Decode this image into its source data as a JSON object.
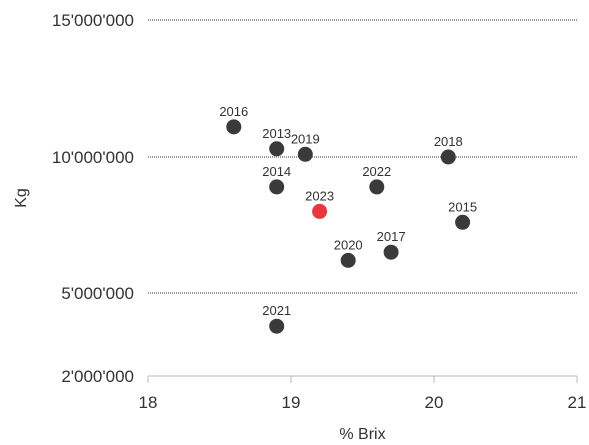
{
  "chart_data": {
    "type": "scatter",
    "title": "",
    "xlabel": "% Brix",
    "ylabel": "Kg",
    "xlim": [
      18,
      21
    ],
    "ylim": [
      2000000,
      15000000
    ],
    "x_ticks": [
      {
        "value": 18,
        "label": "18"
      },
      {
        "value": 19,
        "label": "19"
      },
      {
        "value": 20,
        "label": "20"
      },
      {
        "value": 21,
        "label": "21"
      }
    ],
    "y_ticks": [
      {
        "value": 2000000,
        "label": "2'000'000"
      },
      {
        "value": 5000000,
        "label": "5'000'000"
      },
      {
        "value": 10000000,
        "label": "10'000'000"
      },
      {
        "value": 15000000,
        "label": "15'000'000"
      }
    ],
    "grid": "horizontal dotted",
    "colors": {
      "default": "#3a3a3a",
      "highlight": "#e8383d"
    },
    "points": [
      {
        "label": "2016",
        "x": 18.6,
        "y": 11100000,
        "highlight": false
      },
      {
        "label": "2013",
        "x": 18.9,
        "y": 10300000,
        "highlight": false
      },
      {
        "label": "2019",
        "x": 19.1,
        "y": 10100000,
        "highlight": false
      },
      {
        "label": "2018",
        "x": 20.1,
        "y": 10000000,
        "highlight": false
      },
      {
        "label": "2014",
        "x": 18.9,
        "y": 8900000,
        "highlight": false
      },
      {
        "label": "2022",
        "x": 19.6,
        "y": 8900000,
        "highlight": false
      },
      {
        "label": "2023",
        "x": 19.2,
        "y": 8000000,
        "highlight": true
      },
      {
        "label": "2015",
        "x": 20.2,
        "y": 7600000,
        "highlight": false
      },
      {
        "label": "2017",
        "x": 19.7,
        "y": 6500000,
        "highlight": false
      },
      {
        "label": "2020",
        "x": 19.4,
        "y": 6200000,
        "highlight": false
      },
      {
        "label": "2021",
        "x": 18.9,
        "y": 3800000,
        "highlight": false
      }
    ]
  }
}
